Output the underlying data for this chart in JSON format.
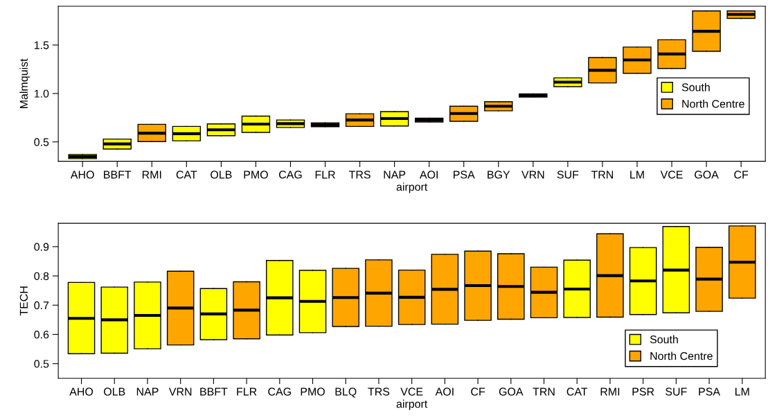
{
  "chart_data": [
    {
      "type": "box",
      "xlabel": "airport",
      "ylabel": "Malmquist",
      "ylim": [
        0.3,
        1.9
      ],
      "yticks": [
        0.5,
        {
          "value": 1.0,
          "label": "1.0"
        },
        1.5
      ],
      "legend": "center right",
      "grid": false,
      "categories": [
        "AHO",
        "BBFT",
        "RMI",
        "CAT",
        "OLB",
        "PMO",
        "CAG",
        "FLR",
        "TRS",
        "NAP",
        "AOI",
        "PSA",
        "BGY",
        "VRN",
        "SUF",
        "TRN",
        "LM",
        "VCE",
        "GOA",
        "CF"
      ],
      "series": [
        {
          "name": "South",
          "color": "#ffff00",
          "boxes": [
            {
              "low": 0.327,
              "q1": 0.327,
              "median": 0.348,
              "q3": 0.37,
              "high": 0.37
            },
            {
              "low": 0.426,
              "q1": 0.426,
              "median": 0.479,
              "q3": 0.529,
              "high": 0.529
            },
            null,
            {
              "low": 0.511,
              "q1": 0.511,
              "median": 0.585,
              "q3": 0.66,
              "high": 0.66
            },
            {
              "low": 0.564,
              "q1": 0.564,
              "median": 0.625,
              "q3": 0.686,
              "high": 0.686
            },
            {
              "low": 0.598,
              "q1": 0.598,
              "median": 0.684,
              "q3": 0.766,
              "high": 0.766
            },
            {
              "low": 0.649,
              "q1": 0.649,
              "median": 0.689,
              "q3": 0.726,
              "high": 0.726
            },
            null,
            null,
            {
              "low": 0.664,
              "q1": 0.664,
              "median": 0.741,
              "q3": 0.813,
              "high": 0.813
            },
            null,
            null,
            null,
            null,
            {
              "low": 1.07,
              "q1": 1.07,
              "median": 1.117,
              "q3": 1.161,
              "high": 1.161
            },
            null,
            null,
            null,
            null,
            null
          ]
        },
        {
          "name": "North Centre",
          "color": "#ffa500",
          "boxes": [
            null,
            null,
            {
              "low": 0.503,
              "q1": 0.503,
              "median": 0.59,
              "q3": 0.681,
              "high": 0.681
            },
            null,
            null,
            null,
            null,
            {
              "low": 0.657,
              "q1": 0.657,
              "median": 0.678,
              "q3": 0.697,
              "high": 0.697
            },
            {
              "low": 0.66,
              "q1": 0.66,
              "median": 0.726,
              "q3": 0.79,
              "high": 0.79
            },
            null,
            {
              "low": 0.705,
              "q1": 0.705,
              "median": 0.726,
              "q3": 0.746,
              "high": 0.746
            },
            {
              "low": 0.713,
              "q1": 0.713,
              "median": 0.793,
              "q3": 0.868,
              "high": 0.868
            },
            {
              "low": 0.821,
              "q1": 0.821,
              "median": 0.868,
              "q3": 0.915,
              "high": 0.915
            },
            {
              "low": 0.963,
              "q1": 0.963,
              "median": 0.978,
              "q3": 0.995,
              "high": 0.995
            },
            null,
            {
              "low": 1.109,
              "q1": 1.109,
              "median": 1.239,
              "q3": 1.371,
              "high": 1.371
            },
            {
              "low": 1.208,
              "q1": 1.208,
              "median": 1.346,
              "q3": 1.479,
              "high": 1.479
            },
            {
              "low": 1.258,
              "q1": 1.258,
              "median": 1.407,
              "q3": 1.554,
              "high": 1.554
            },
            {
              "low": 1.435,
              "q1": 1.435,
              "median": 1.642,
              "q3": 1.852,
              "high": 1.852
            },
            {
              "low": 1.775,
              "q1": 1.775,
              "median": 1.816,
              "q3": 1.852,
              "high": 1.852
            }
          ]
        }
      ]
    },
    {
      "type": "box",
      "xlabel": "airport",
      "ylabel": "TECH",
      "ylim": [
        0.45,
        0.98
      ],
      "yticks": [
        0.5,
        0.6,
        0.7,
        0.8,
        0.9
      ],
      "legend": "lower right",
      "grid": false,
      "categories": [
        "AHO",
        "OLB",
        "NAP",
        "VRN",
        "BBFT",
        "FLR",
        "CAG",
        "PMO",
        "BLQ",
        "TRS",
        "VCE",
        "AOI",
        "CF",
        "GOA",
        "TRN",
        "CAT",
        "RMI",
        "PSR",
        "SUF",
        "PSA",
        "LM"
      ],
      "series": [
        {
          "name": "South",
          "color": "#ffff00",
          "boxes": [
            {
              "low": 0.534,
              "q1": 0.534,
              "median": 0.655,
              "q3": 0.778,
              "high": 0.778
            },
            {
              "low": 0.536,
              "q1": 0.536,
              "median": 0.65,
              "q3": 0.762,
              "high": 0.762
            },
            {
              "low": 0.551,
              "q1": 0.551,
              "median": 0.665,
              "q3": 0.779,
              "high": 0.779
            },
            null,
            {
              "low": 0.582,
              "q1": 0.582,
              "median": 0.67,
              "q3": 0.757,
              "high": 0.757
            },
            null,
            {
              "low": 0.598,
              "q1": 0.598,
              "median": 0.725,
              "q3": 0.853,
              "high": 0.853
            },
            {
              "low": 0.606,
              "q1": 0.606,
              "median": 0.713,
              "q3": 0.819,
              "high": 0.819
            },
            null,
            null,
            null,
            null,
            null,
            null,
            null,
            {
              "low": 0.658,
              "q1": 0.658,
              "median": 0.755,
              "q3": 0.854,
              "high": 0.854
            },
            null,
            {
              "low": 0.668,
              "q1": 0.668,
              "median": 0.783,
              "q3": 0.897,
              "high": 0.897
            },
            {
              "low": 0.674,
              "q1": 0.674,
              "median": 0.82,
              "q3": 0.969,
              "high": 0.969
            },
            null,
            null
          ]
        },
        {
          "name": "North Centre",
          "color": "#ffa500",
          "boxes": [
            null,
            null,
            null,
            {
              "low": 0.564,
              "q1": 0.564,
              "median": 0.69,
              "q3": 0.816,
              "high": 0.816
            },
            null,
            {
              "low": 0.585,
              "q1": 0.585,
              "median": 0.683,
              "q3": 0.78,
              "high": 0.78
            },
            null,
            null,
            {
              "low": 0.627,
              "q1": 0.627,
              "median": 0.726,
              "q3": 0.826,
              "high": 0.826
            },
            {
              "low": 0.628,
              "q1": 0.628,
              "median": 0.741,
              "q3": 0.855,
              "high": 0.855
            },
            {
              "low": 0.634,
              "q1": 0.634,
              "median": 0.727,
              "q3": 0.82,
              "high": 0.82
            },
            {
              "low": 0.635,
              "q1": 0.635,
              "median": 0.754,
              "q3": 0.874,
              "high": 0.874
            },
            {
              "low": 0.648,
              "q1": 0.648,
              "median": 0.767,
              "q3": 0.885,
              "high": 0.885
            },
            {
              "low": 0.652,
              "q1": 0.652,
              "median": 0.764,
              "q3": 0.876,
              "high": 0.876
            },
            {
              "low": 0.657,
              "q1": 0.657,
              "median": 0.744,
              "q3": 0.83,
              "high": 0.83
            },
            null,
            {
              "low": 0.659,
              "q1": 0.659,
              "median": 0.801,
              "q3": 0.944,
              "high": 0.944
            },
            null,
            null,
            {
              "low": 0.679,
              "q1": 0.679,
              "median": 0.789,
              "q3": 0.898,
              "high": 0.898
            },
            {
              "low": 0.724,
              "q1": 0.724,
              "median": 0.847,
              "q3": 0.971,
              "high": 0.971
            }
          ]
        }
      ]
    }
  ]
}
